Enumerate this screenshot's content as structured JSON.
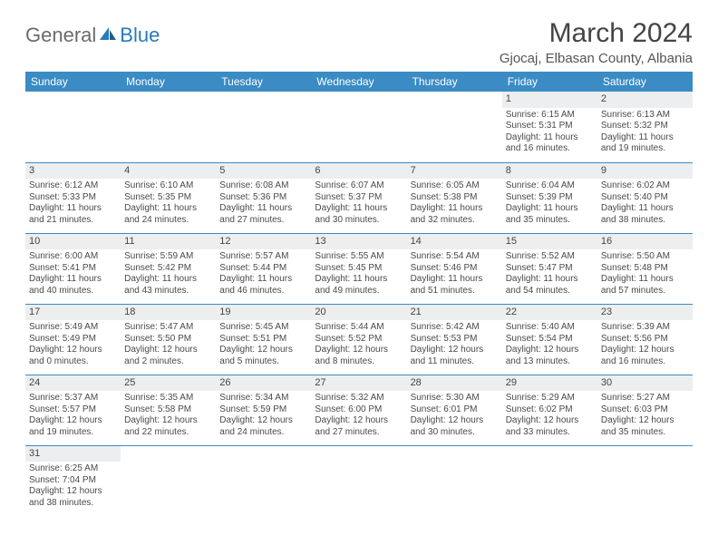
{
  "logo": {
    "general": "General",
    "blue": "Blue"
  },
  "title": "March 2024",
  "location": "Gjocaj, Elbasan County, Albania",
  "colors": {
    "header_bg": "#3b8bc4",
    "header_text": "#ffffff",
    "daynum_bg": "#eceeef",
    "border": "#3b8bc4",
    "text": "#4a4a4a",
    "logo_gray": "#6b6b6b",
    "logo_blue": "#2a7ab8",
    "page_bg": "#ffffff"
  },
  "typography": {
    "title_fontsize": 30,
    "location_fontsize": 15,
    "dayheader_fontsize": 12,
    "daynum_fontsize": 11,
    "cell_fontsize": 10
  },
  "day_headers": [
    "Sunday",
    "Monday",
    "Tuesday",
    "Wednesday",
    "Thursday",
    "Friday",
    "Saturday"
  ],
  "weeks": [
    [
      null,
      null,
      null,
      null,
      null,
      {
        "n": "1",
        "sr": "Sunrise: 6:15 AM",
        "ss": "Sunset: 5:31 PM",
        "dl1": "Daylight: 11 hours",
        "dl2": "and 16 minutes."
      },
      {
        "n": "2",
        "sr": "Sunrise: 6:13 AM",
        "ss": "Sunset: 5:32 PM",
        "dl1": "Daylight: 11 hours",
        "dl2": "and 19 minutes."
      }
    ],
    [
      {
        "n": "3",
        "sr": "Sunrise: 6:12 AM",
        "ss": "Sunset: 5:33 PM",
        "dl1": "Daylight: 11 hours",
        "dl2": "and 21 minutes."
      },
      {
        "n": "4",
        "sr": "Sunrise: 6:10 AM",
        "ss": "Sunset: 5:35 PM",
        "dl1": "Daylight: 11 hours",
        "dl2": "and 24 minutes."
      },
      {
        "n": "5",
        "sr": "Sunrise: 6:08 AM",
        "ss": "Sunset: 5:36 PM",
        "dl1": "Daylight: 11 hours",
        "dl2": "and 27 minutes."
      },
      {
        "n": "6",
        "sr": "Sunrise: 6:07 AM",
        "ss": "Sunset: 5:37 PM",
        "dl1": "Daylight: 11 hours",
        "dl2": "and 30 minutes."
      },
      {
        "n": "7",
        "sr": "Sunrise: 6:05 AM",
        "ss": "Sunset: 5:38 PM",
        "dl1": "Daylight: 11 hours",
        "dl2": "and 32 minutes."
      },
      {
        "n": "8",
        "sr": "Sunrise: 6:04 AM",
        "ss": "Sunset: 5:39 PM",
        "dl1": "Daylight: 11 hours",
        "dl2": "and 35 minutes."
      },
      {
        "n": "9",
        "sr": "Sunrise: 6:02 AM",
        "ss": "Sunset: 5:40 PM",
        "dl1": "Daylight: 11 hours",
        "dl2": "and 38 minutes."
      }
    ],
    [
      {
        "n": "10",
        "sr": "Sunrise: 6:00 AM",
        "ss": "Sunset: 5:41 PM",
        "dl1": "Daylight: 11 hours",
        "dl2": "and 40 minutes."
      },
      {
        "n": "11",
        "sr": "Sunrise: 5:59 AM",
        "ss": "Sunset: 5:42 PM",
        "dl1": "Daylight: 11 hours",
        "dl2": "and 43 minutes."
      },
      {
        "n": "12",
        "sr": "Sunrise: 5:57 AM",
        "ss": "Sunset: 5:44 PM",
        "dl1": "Daylight: 11 hours",
        "dl2": "and 46 minutes."
      },
      {
        "n": "13",
        "sr": "Sunrise: 5:55 AM",
        "ss": "Sunset: 5:45 PM",
        "dl1": "Daylight: 11 hours",
        "dl2": "and 49 minutes."
      },
      {
        "n": "14",
        "sr": "Sunrise: 5:54 AM",
        "ss": "Sunset: 5:46 PM",
        "dl1": "Daylight: 11 hours",
        "dl2": "and 51 minutes."
      },
      {
        "n": "15",
        "sr": "Sunrise: 5:52 AM",
        "ss": "Sunset: 5:47 PM",
        "dl1": "Daylight: 11 hours",
        "dl2": "and 54 minutes."
      },
      {
        "n": "16",
        "sr": "Sunrise: 5:50 AM",
        "ss": "Sunset: 5:48 PM",
        "dl1": "Daylight: 11 hours",
        "dl2": "and 57 minutes."
      }
    ],
    [
      {
        "n": "17",
        "sr": "Sunrise: 5:49 AM",
        "ss": "Sunset: 5:49 PM",
        "dl1": "Daylight: 12 hours",
        "dl2": "and 0 minutes."
      },
      {
        "n": "18",
        "sr": "Sunrise: 5:47 AM",
        "ss": "Sunset: 5:50 PM",
        "dl1": "Daylight: 12 hours",
        "dl2": "and 2 minutes."
      },
      {
        "n": "19",
        "sr": "Sunrise: 5:45 AM",
        "ss": "Sunset: 5:51 PM",
        "dl1": "Daylight: 12 hours",
        "dl2": "and 5 minutes."
      },
      {
        "n": "20",
        "sr": "Sunrise: 5:44 AM",
        "ss": "Sunset: 5:52 PM",
        "dl1": "Daylight: 12 hours",
        "dl2": "and 8 minutes."
      },
      {
        "n": "21",
        "sr": "Sunrise: 5:42 AM",
        "ss": "Sunset: 5:53 PM",
        "dl1": "Daylight: 12 hours",
        "dl2": "and 11 minutes."
      },
      {
        "n": "22",
        "sr": "Sunrise: 5:40 AM",
        "ss": "Sunset: 5:54 PM",
        "dl1": "Daylight: 12 hours",
        "dl2": "and 13 minutes."
      },
      {
        "n": "23",
        "sr": "Sunrise: 5:39 AM",
        "ss": "Sunset: 5:56 PM",
        "dl1": "Daylight: 12 hours",
        "dl2": "and 16 minutes."
      }
    ],
    [
      {
        "n": "24",
        "sr": "Sunrise: 5:37 AM",
        "ss": "Sunset: 5:57 PM",
        "dl1": "Daylight: 12 hours",
        "dl2": "and 19 minutes."
      },
      {
        "n": "25",
        "sr": "Sunrise: 5:35 AM",
        "ss": "Sunset: 5:58 PM",
        "dl1": "Daylight: 12 hours",
        "dl2": "and 22 minutes."
      },
      {
        "n": "26",
        "sr": "Sunrise: 5:34 AM",
        "ss": "Sunset: 5:59 PM",
        "dl1": "Daylight: 12 hours",
        "dl2": "and 24 minutes."
      },
      {
        "n": "27",
        "sr": "Sunrise: 5:32 AM",
        "ss": "Sunset: 6:00 PM",
        "dl1": "Daylight: 12 hours",
        "dl2": "and 27 minutes."
      },
      {
        "n": "28",
        "sr": "Sunrise: 5:30 AM",
        "ss": "Sunset: 6:01 PM",
        "dl1": "Daylight: 12 hours",
        "dl2": "and 30 minutes."
      },
      {
        "n": "29",
        "sr": "Sunrise: 5:29 AM",
        "ss": "Sunset: 6:02 PM",
        "dl1": "Daylight: 12 hours",
        "dl2": "and 33 minutes."
      },
      {
        "n": "30",
        "sr": "Sunrise: 5:27 AM",
        "ss": "Sunset: 6:03 PM",
        "dl1": "Daylight: 12 hours",
        "dl2": "and 35 minutes."
      }
    ],
    [
      {
        "n": "31",
        "sr": "Sunrise: 6:25 AM",
        "ss": "Sunset: 7:04 PM",
        "dl1": "Daylight: 12 hours",
        "dl2": "and 38 minutes."
      },
      null,
      null,
      null,
      null,
      null,
      null
    ]
  ]
}
